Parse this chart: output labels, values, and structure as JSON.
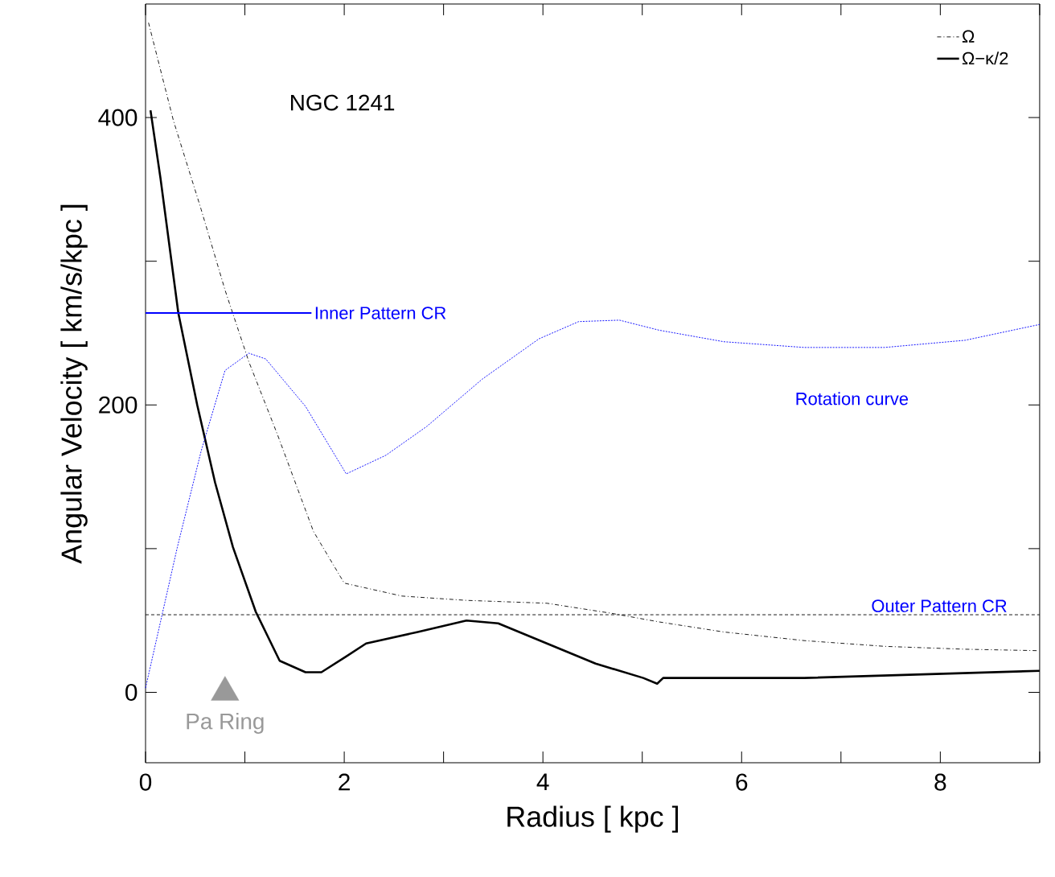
{
  "chart_data": {
    "type": "line",
    "xlabel": "Radius  [ kpc ]",
    "ylabel": "Angular Velocity  [ km/s/kpc ]",
    "xlim": [
      0,
      9
    ],
    "xticks": [
      0,
      {
        "value": 1,
        "label": null
      },
      2,
      {
        "value": 3,
        "label": null
      },
      4,
      {
        "value": 5,
        "label": null
      },
      6,
      {
        "value": 7,
        "label": null
      },
      8,
      {
        "value": 9,
        "label": null
      }
    ],
    "ylim": [
      -49,
      479
    ],
    "yticks": [
      0,
      {
        "value": 100,
        "label": null
      },
      200,
      {
        "value": 300,
        "label": null
      },
      400
    ],
    "legend": "top right",
    "ref_lines": [
      {
        "axis": "y",
        "value": 54,
        "label": "Outer Pattern CR",
        "color": "#000000",
        "line_style": "dashed"
      }
    ],
    "marker": "none",
    "grid": false,
    "annotations": [
      "NGC 1241"
    ],
    "series": [
      {
        "name": "Ω",
        "color": "#000000",
        "line_style": "dashdot",
        "x": [
          0.03,
          0.28,
          0.56,
          0.8,
          1.04,
          1.33,
          1.69,
          2.0,
          2.58,
          3.23,
          4.04,
          4.69,
          5.17,
          5.82,
          6.63,
          7.44,
          8.25,
          8.98
        ],
        "values": [
          466,
          398,
          336,
          280,
          230,
          179,
          112,
          76,
          67,
          64,
          62,
          55,
          49,
          42,
          36,
          32,
          30,
          29
        ]
      },
      {
        "name": "Ω−κ/2",
        "color": "#000000",
        "line_style": "solid",
        "x": [
          0.05,
          0.15,
          0.33,
          0.52,
          0.7,
          0.88,
          1.11,
          1.35,
          1.61,
          1.77,
          2.02,
          2.22,
          2.74,
          3.23,
          3.55,
          4.04,
          4.53,
          5.01,
          5.15,
          5.21,
          6.63,
          9.0
        ],
        "values": [
          405,
          358,
          264,
          200,
          146,
          101,
          56,
          22,
          14,
          14,
          25,
          34,
          42,
          50,
          48,
          34,
          20,
          10,
          6,
          10,
          10,
          15
        ]
      },
      {
        "name": "Rotation curve",
        "color": "#0000ff",
        "line_style": "dotted",
        "x": [
          0,
          0.32,
          0.56,
          0.8,
          1.04,
          1.21,
          1.61,
          2.02,
          2.42,
          2.83,
          3.39,
          3.96,
          4.36,
          4.77,
          5.17,
          5.82,
          6.63,
          7.44,
          8.25,
          9.0
        ],
        "values": [
          3,
          101,
          168,
          224,
          236,
          232,
          199,
          152,
          165,
          185,
          218,
          246,
          258,
          259,
          252,
          244,
          240,
          240,
          245,
          256
        ]
      },
      {
        "name": "Inner Pattern CR",
        "color": "#0000ff",
        "line_style": "solid",
        "x": [
          0,
          1.67
        ],
        "values": [
          264,
          264
        ]
      },
      {
        "name": "Pa Ring",
        "type": "scatter",
        "marker": "triangle",
        "color": "#999999",
        "x": [
          0.8
        ],
        "values": [
          0
        ]
      }
    ]
  }
}
